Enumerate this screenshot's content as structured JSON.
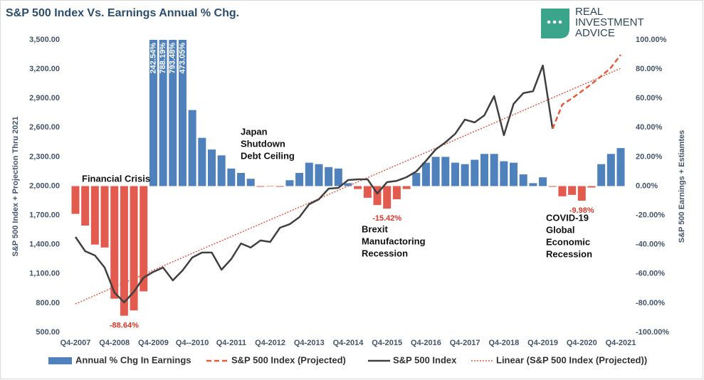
{
  "chart_data": {
    "type": "bar-line",
    "title": "S&P 500 Index Vs. Earnings Annual % Chg.",
    "ylabel": "S&P 500 Index + Projection Thru 2021",
    "y2label": "S&P 500 Earnings + Estiamtes",
    "logo": [
      "REAL",
      "INVESTMENT",
      "ADVICE"
    ],
    "categories": [
      "Q4-2007",
      null,
      null,
      null,
      "Q4-2008",
      null,
      null,
      null,
      "Q4-2009",
      null,
      null,
      null,
      "Q4--2010",
      null,
      null,
      null,
      "Q4-2011",
      null,
      null,
      null,
      "Q4-2012",
      null,
      null,
      null,
      "Q4-2013",
      null,
      null,
      null,
      "Q4-2014",
      null,
      null,
      null,
      "Q4-2015",
      null,
      null,
      null,
      "Q4-2016",
      null,
      null,
      null,
      "Q4-2017",
      null,
      null,
      null,
      "Q4-2018",
      null,
      null,
      null,
      "Q4-2019",
      null,
      null,
      null,
      "Q4-2020",
      null,
      null,
      null,
      "Q4-2021"
    ],
    "ylim": [
      500,
      3500
    ],
    "yticks": [
      {
        "value": 500,
        "label": "500.00"
      },
      {
        "value": 800,
        "label": "800.00"
      },
      {
        "value": 1100,
        "label": "1,100.00"
      },
      {
        "value": 1400,
        "label": "1,400.00"
      },
      {
        "value": 1700,
        "label": "1,700.00"
      },
      {
        "value": 2000,
        "label": "2,000.00"
      },
      {
        "value": 2300,
        "label": "2,300.00"
      },
      {
        "value": 2600,
        "label": "2,600.00"
      },
      {
        "value": 2900,
        "label": "2,900.00"
      },
      {
        "value": 3200,
        "label": "3,200.00"
      },
      {
        "value": 3500,
        "label": "3,500.00"
      }
    ],
    "y2lim": [
      -100,
      100
    ],
    "y2ticks": [
      {
        "value": -100,
        "label": "-100.00%"
      },
      {
        "value": -80,
        "label": "-80.00%"
      },
      {
        "value": -60,
        "label": "-60.00%"
      },
      {
        "value": -40,
        "label": "-40.00%"
      },
      {
        "value": -20,
        "label": "-20.00%"
      },
      {
        "value": 0,
        "label": "0.00%"
      },
      {
        "value": 20,
        "label": "20.00%"
      },
      {
        "value": 40,
        "label": "40.00%"
      },
      {
        "value": 60,
        "label": "60.00%"
      },
      {
        "value": 80,
        "label": "80.00%"
      },
      {
        "value": 100,
        "label": "100.00%"
      }
    ],
    "series": [
      {
        "name": "Annual % Chg In Earnings",
        "kind": "bar",
        "axis": "y2",
        "color": "#4f81bd",
        "negative_color": "#e35b4f",
        "values": [
          -19,
          -27,
          -40,
          -42,
          -77,
          -88.64,
          -85,
          -72,
          242.54,
          788.19,
          793.48,
          473.05,
          52,
          33,
          25,
          21,
          12,
          9,
          5,
          -0.5,
          -0.3,
          -0.5,
          4,
          9,
          16,
          15,
          13,
          12,
          2,
          -2,
          -8,
          -13,
          -15.42,
          -9,
          -2,
          9,
          16,
          20,
          20,
          16,
          15,
          18,
          22,
          22,
          17,
          16,
          8,
          2,
          6,
          -0.5,
          -7,
          -6,
          -9.98,
          -1,
          15,
          22,
          26
        ],
        "value_labels": [
          null,
          null,
          null,
          null,
          null,
          "-88.64%",
          null,
          null,
          "242.54%",
          "788.19%",
          "793.48%",
          "473.05%",
          null,
          null,
          null,
          null,
          null,
          null,
          null,
          null,
          null,
          null,
          null,
          null,
          null,
          null,
          null,
          null,
          null,
          null,
          null,
          null,
          "-15.42%",
          null,
          null,
          null,
          null,
          null,
          null,
          null,
          null,
          null,
          null,
          null,
          null,
          null,
          null,
          null,
          null,
          null,
          null,
          null,
          "-9.98%",
          null,
          null,
          null,
          null
        ]
      },
      {
        "name": "S&P 500 Index (Projected)",
        "kind": "dashed",
        "color": "#e8593d",
        "values": [
          null,
          null,
          null,
          null,
          null,
          null,
          null,
          null,
          null,
          null,
          null,
          null,
          null,
          null,
          null,
          null,
          null,
          null,
          null,
          null,
          null,
          null,
          null,
          null,
          null,
          null,
          null,
          null,
          null,
          null,
          null,
          null,
          null,
          null,
          null,
          null,
          null,
          null,
          null,
          null,
          null,
          null,
          null,
          null,
          null,
          null,
          null,
          null,
          null,
          2588,
          2836,
          2901,
          2974,
          3047,
          3128,
          3215,
          3347
        ]
      },
      {
        "name": "S&P 500 Index",
        "kind": "line",
        "color": "#404040",
        "values": [
          1478,
          1332,
          1288,
          1164,
          909,
          807,
          916,
          1062,
          1120,
          1164,
          1033,
          1135,
          1267,
          1318,
          1318,
          1142,
          1252,
          1412,
          1369,
          1442,
          1427,
          1573,
          1609,
          1682,
          1814,
          1865,
          1974,
          1982,
          2062,
          2069,
          2069,
          1923,
          2040,
          2054,
          2091,
          2150,
          2259,
          2376,
          2449,
          2536,
          2682,
          2653,
          2726,
          2923,
          2522,
          2843,
          2953,
          2974,
          3237,
          2588,
          null,
          null,
          null,
          null,
          null,
          null,
          null
        ]
      },
      {
        "name": "Linear (S&P 500 Index (Projected))",
        "kind": "dotted",
        "color": "#e05a4c",
        "values": [
          792,
          835,
          878,
          921,
          965,
          1008,
          1051,
          1094,
          1137,
          1180,
          1223,
          1267,
          1310,
          1353,
          1396,
          1439,
          1482,
          1525,
          1569,
          1612,
          1655,
          1698,
          1741,
          1784,
          1827,
          1871,
          1914,
          1957,
          2000,
          2043,
          2086,
          2129,
          2172,
          2216,
          2259,
          2302,
          2345,
          2388,
          2431,
          2474,
          2518,
          2561,
          2604,
          2647,
          2690,
          2733,
          2776,
          2820,
          2863,
          2906,
          2949,
          2992,
          3035,
          3078,
          3122,
          3165,
          3208
        ]
      }
    ],
    "annotations": [
      {
        "lines": [
          "Financial Crisis"
        ]
      },
      {
        "lines": [
          "Japan",
          "Shutdown",
          "Debt Ceiling"
        ]
      },
      {
        "lines": [
          "Brexit",
          "Manufactoring",
          "Recession"
        ]
      },
      {
        "lines": [
          "COVID-19",
          "Global",
          "Economic",
          "Recession"
        ]
      }
    ]
  }
}
